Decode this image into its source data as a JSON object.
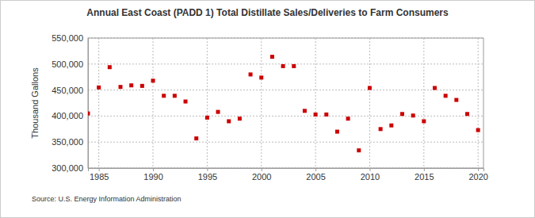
{
  "chart_data": {
    "type": "scatter",
    "title": "Annual East Coast (PADD 1) Total Distillate Sales/Deliveries to Farm Consumers",
    "y_label": "Thousand Gallons",
    "source": "Source: U.S. Energy Information Administration",
    "x": [
      1984,
      1985,
      1986,
      1987,
      1988,
      1989,
      1990,
      1991,
      1992,
      1993,
      1994,
      1995,
      1996,
      1997,
      1998,
      1999,
      2000,
      2001,
      2002,
      2003,
      2004,
      2005,
      2006,
      2007,
      2008,
      2009,
      2010,
      2011,
      2012,
      2013,
      2014,
      2015,
      2016,
      2017,
      2018,
      2019,
      2020
    ],
    "series": [
      {
        "name": "Total Distillate Sales/Deliveries to Farm Consumers",
        "color": "#cc0000",
        "marker": "square",
        "values": [
          405000,
          455000,
          494000,
          456000,
          459000,
          458000,
          468000,
          439000,
          439000,
          428000,
          357000,
          397000,
          408000,
          390000,
          395000,
          480000,
          474000,
          514000,
          496000,
          496000,
          410000,
          403000,
          403000,
          370000,
          395000,
          334000,
          454000,
          375000,
          382000,
          404000,
          401000,
          390000,
          454000,
          439000,
          431000,
          404000,
          373000
        ]
      }
    ],
    "xlim": [
      1984,
      2020.5
    ],
    "xticks": [
      1985,
      1990,
      1995,
      2000,
      2005,
      2010,
      2015,
      2020
    ],
    "ylim": [
      300000,
      550000
    ],
    "yticks": [
      {
        "value": 300000,
        "label": "300,000"
      },
      {
        "value": 350000,
        "label": "350,000"
      },
      {
        "value": 400000,
        "label": "400,000"
      },
      {
        "value": 450000,
        "label": "450,000"
      },
      {
        "value": 500000,
        "label": "500,000"
      },
      {
        "value": 550000,
        "label": "550,000"
      }
    ],
    "grid": true
  }
}
